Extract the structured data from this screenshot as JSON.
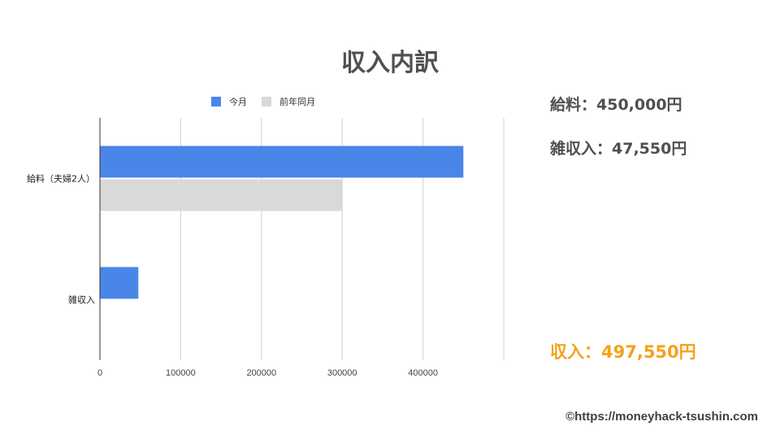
{
  "title": "収入内訳",
  "chart_data": {
    "type": "bar",
    "orientation": "horizontal",
    "categories": [
      "給料（夫婦2人）",
      "雑収入"
    ],
    "series": [
      {
        "name": "今月",
        "values": [
          450000,
          47550
        ],
        "color": "#4a86e8"
      },
      {
        "name": "前年同月",
        "values": [
          300000,
          0
        ],
        "color": "#d9d9d9"
      }
    ],
    "xlim": [
      0,
      500000
    ],
    "x_ticks": [
      0,
      100000,
      200000,
      300000,
      400000
    ],
    "legend": "top",
    "grid": true
  },
  "summary": {
    "salary": "給料：450,000円",
    "misc": "雑収入：47,550円",
    "total": "収入：497,550円"
  },
  "credit": "©https://moneyhack-tsushin.com"
}
